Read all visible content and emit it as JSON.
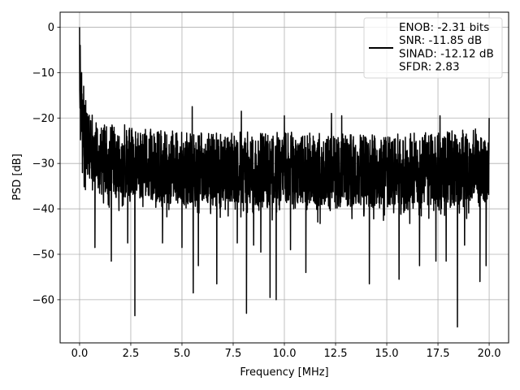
{
  "chart_data": {
    "type": "line",
    "title": "",
    "xlabel": "Frequency [MHz]",
    "ylabel": "PSD [dB]",
    "xlim": [
      -0.95,
      20.95
    ],
    "ylim": [
      -69.5,
      3.3
    ],
    "xticks": [
      0.0,
      2.5,
      5.0,
      7.5,
      10.0,
      12.5,
      15.0,
      17.5,
      20.0
    ],
    "xtick_labels": [
      "0.0",
      "2.5",
      "5.0",
      "7.5",
      "10.0",
      "12.5",
      "15.0",
      "17.5",
      "20.0"
    ],
    "yticks": [
      0,
      -10,
      -20,
      -30,
      -40,
      -50,
      -60
    ],
    "ytick_labels": [
      "0",
      "−10",
      "−20",
      "−30",
      "−40",
      "−50",
      "−60"
    ],
    "grid": true,
    "legend_position": "top-right",
    "series": [
      {
        "name": "ENOB: -2.31 bits\nSNR: -11.85 dB\nSINAD: -12.12 dB\nSFDR: 2.83",
        "color": "#000000",
        "x_start": 0,
        "x_end": 20,
        "description": "dense noise spectrum, mostly between -37 and -20 dB",
        "peak": {
          "x": 0,
          "y": 0
        },
        "upper_envelope": [
          [
            0,
            0
          ],
          [
            0.05,
            -8
          ],
          [
            0.1,
            -12
          ],
          [
            0.2,
            -15
          ],
          [
            0.4,
            -17
          ],
          [
            0.7,
            -19
          ],
          [
            1.0,
            -21
          ],
          [
            2.5,
            -22
          ],
          [
            5.0,
            -23
          ],
          [
            7.5,
            -23
          ],
          [
            10.0,
            -23
          ],
          [
            12.5,
            -23.5
          ],
          [
            15.0,
            -23.5
          ],
          [
            17.5,
            -23
          ],
          [
            20.0,
            -22
          ]
        ],
        "notable_points": [
          {
            "x": 0.03,
            "y": -4
          },
          {
            "x": 0.1,
            "y": -10
          },
          {
            "x": 0.2,
            "y": -13
          },
          {
            "x": 2.2,
            "y": -21.5
          },
          {
            "x": 5.5,
            "y": -17.5
          },
          {
            "x": 7.9,
            "y": -18.5
          },
          {
            "x": 10.0,
            "y": -19.5
          },
          {
            "x": 12.3,
            "y": -19
          },
          {
            "x": 12.8,
            "y": -19.5
          },
          {
            "x": 17.6,
            "y": -19.5
          },
          {
            "x": 20.0,
            "y": -20
          },
          {
            "x": 0.75,
            "y": -48.5
          },
          {
            "x": 1.55,
            "y": -51.5
          },
          {
            "x": 2.35,
            "y": -47.5
          },
          {
            "x": 2.7,
            "y": -63.5
          },
          {
            "x": 4.05,
            "y": -47.5
          },
          {
            "x": 5.0,
            "y": -48.5
          },
          {
            "x": 5.55,
            "y": -58.5
          },
          {
            "x": 5.8,
            "y": -52.5
          },
          {
            "x": 6.7,
            "y": -56.5
          },
          {
            "x": 7.7,
            "y": -47.5
          },
          {
            "x": 8.15,
            "y": -63
          },
          {
            "x": 8.5,
            "y": -48
          },
          {
            "x": 8.85,
            "y": -49.5
          },
          {
            "x": 9.3,
            "y": -59.5
          },
          {
            "x": 9.6,
            "y": -60
          },
          {
            "x": 10.3,
            "y": -49
          },
          {
            "x": 11.05,
            "y": -54
          },
          {
            "x": 14.15,
            "y": -56.5
          },
          {
            "x": 15.6,
            "y": -55.5
          },
          {
            "x": 16.6,
            "y": -52.5
          },
          {
            "x": 17.4,
            "y": -51.5
          },
          {
            "x": 17.9,
            "y": -51.5
          },
          {
            "x": 18.45,
            "y": -66
          },
          {
            "x": 18.8,
            "y": -48
          },
          {
            "x": 19.55,
            "y": -56
          },
          {
            "x": 19.85,
            "y": -52.5
          }
        ]
      }
    ]
  }
}
